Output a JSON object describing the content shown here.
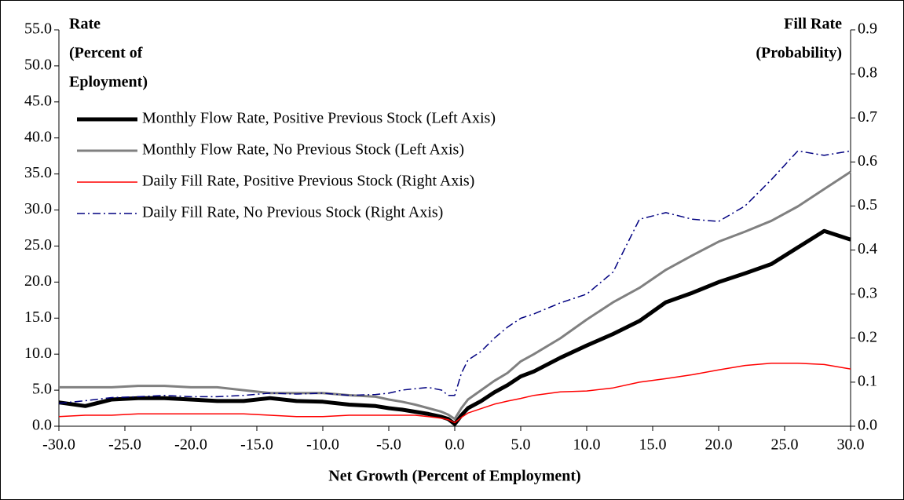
{
  "chart_data": {
    "type": "line",
    "y_label": [
      "Rate",
      "(Percent of",
      "Eployment)"
    ],
    "y2_label": [
      "Fill Rate",
      "(Probability)"
    ],
    "x_label": "Net Growth (Percent of Employment)",
    "x": [
      -30,
      -28,
      -26,
      -24,
      -22,
      -20,
      -18,
      -16,
      -14,
      -12,
      -10,
      -8,
      -6,
      -5,
      -4,
      -3,
      -2,
      -1,
      -0.5,
      0,
      0.5,
      1,
      2,
      3,
      4,
      5,
      6,
      8,
      10,
      12,
      14,
      16,
      18,
      20,
      22,
      24,
      26,
      28,
      30
    ],
    "series": [
      {
        "name": "Monthly Flow Rate, Positive Previous Stock (Left Axis)",
        "color": "#000000",
        "width": 5,
        "dash": "solid",
        "values": [
          3.3,
          2.8,
          3.7,
          3.9,
          3.9,
          3.7,
          3.5,
          3.5,
          3.9,
          3.5,
          3.4,
          3.0,
          2.8,
          2.5,
          2.3,
          2.0,
          1.7,
          1.3,
          1.0,
          0.3,
          1.5,
          2.5,
          3.5,
          4.7,
          5.7,
          6.9,
          7.6,
          9.5,
          11.2,
          12.8,
          14.6,
          17.2,
          18.5,
          20.0,
          21.2,
          22.5,
          24.8,
          27.1,
          25.9
        ]
      },
      {
        "name": "Monthly Flow Rate, No Previous Stock (Left Axis)",
        "color": "#808080",
        "width": 3,
        "dash": "solid",
        "values": [
          5.4,
          5.4,
          5.4,
          5.6,
          5.6,
          5.4,
          5.4,
          5.0,
          4.6,
          4.6,
          4.6,
          4.3,
          4.1,
          3.7,
          3.4,
          3.0,
          2.5,
          2.0,
          1.6,
          1.0,
          2.5,
          3.7,
          5.0,
          6.3,
          7.4,
          9.0,
          10.0,
          12.2,
          14.8,
          17.2,
          19.2,
          21.7,
          23.7,
          25.6,
          27.0,
          28.5,
          30.5,
          32.9,
          35.3
        ]
      },
      {
        "name": "Daily Fill Rate, Positive Previous Stock (Right Axis)",
        "color": "#ff0000",
        "width": 1.5,
        "dash": "solid",
        "axis": "y2",
        "values": [
          0.022,
          0.025,
          0.025,
          0.028,
          0.028,
          0.028,
          0.028,
          0.028,
          0.025,
          0.022,
          0.022,
          0.025,
          0.025,
          0.025,
          0.025,
          0.025,
          0.022,
          0.018,
          0.015,
          0.008,
          0.02,
          0.03,
          0.04,
          0.05,
          0.057,
          0.063,
          0.07,
          0.078,
          0.08,
          0.087,
          0.1,
          0.108,
          0.117,
          0.128,
          0.138,
          0.143,
          0.143,
          0.14,
          0.13
        ]
      },
      {
        "name": "Daily Fill Rate, No Previous Stock (Right Axis)",
        "color": "#000080",
        "width": 1.5,
        "dash": "dashdot",
        "axis": "y2",
        "values": [
          0.052,
          0.058,
          0.065,
          0.067,
          0.07,
          0.067,
          0.067,
          0.07,
          0.075,
          0.073,
          0.075,
          0.07,
          0.072,
          0.075,
          0.082,
          0.085,
          0.088,
          0.082,
          0.07,
          0.07,
          0.12,
          0.15,
          0.17,
          0.2,
          0.225,
          0.245,
          0.255,
          0.28,
          0.3,
          0.35,
          0.47,
          0.485,
          0.47,
          0.465,
          0.5,
          0.56,
          0.625,
          0.615,
          0.625
        ]
      }
    ],
    "xlim": [
      -30,
      30
    ],
    "xticks": [
      {
        "value": -30,
        "label": "-30.0"
      },
      {
        "value": -25,
        "label": "-25.0"
      },
      {
        "value": -20,
        "label": "-20.0"
      },
      {
        "value": -15,
        "label": "-15.0"
      },
      {
        "value": -10,
        "label": "-10.0"
      },
      {
        "value": -5,
        "label": "-5.0"
      },
      {
        "value": 0,
        "label": "0.0"
      },
      {
        "value": 5,
        "label": "5.0"
      },
      {
        "value": 10,
        "label": "10.0"
      },
      {
        "value": 15,
        "label": "15.0"
      },
      {
        "value": 20,
        "label": "20.0"
      },
      {
        "value": 25,
        "label": "25.0"
      },
      {
        "value": 30,
        "label": "30.0"
      }
    ],
    "ylim": [
      0,
      55
    ],
    "yticks": [
      {
        "value": 0,
        "label": "0.0"
      },
      {
        "value": 5,
        "label": "5.0"
      },
      {
        "value": 10,
        "label": "10.0"
      },
      {
        "value": 15,
        "label": "15.0"
      },
      {
        "value": 20,
        "label": "20.0"
      },
      {
        "value": 25,
        "label": "25.0"
      },
      {
        "value": 30,
        "label": "30.0"
      },
      {
        "value": 35,
        "label": "35.0"
      },
      {
        "value": 40,
        "label": "40.0"
      },
      {
        "value": 45,
        "label": "45.0"
      },
      {
        "value": 50,
        "label": "50.0"
      },
      {
        "value": 55,
        "label": "55.0"
      }
    ],
    "y2lim": [
      0,
      0.9
    ],
    "y2ticks": [
      {
        "value": 0,
        "label": "0.0"
      },
      0.1,
      0.2,
      0.3,
      0.4,
      0.5,
      0.6,
      0.7,
      0.8,
      0.9
    ],
    "legend": "upper left",
    "grid": false
  }
}
